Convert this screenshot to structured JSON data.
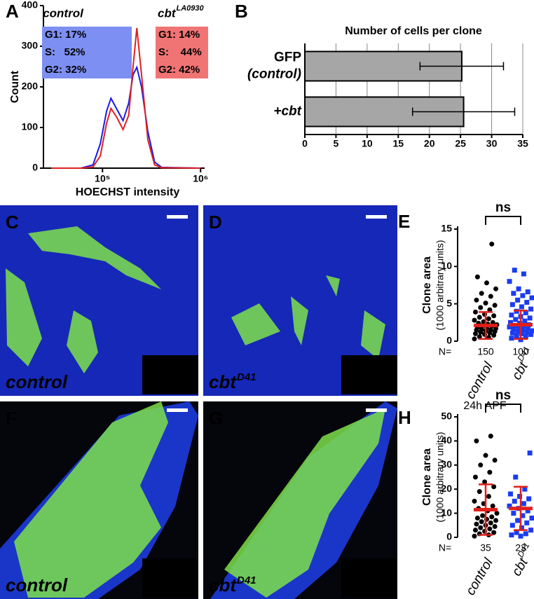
{
  "chart_data": [
    {
      "type": "line",
      "panel": "A",
      "ylabel": "Count",
      "xlabel": "HOECHST intensity",
      "log_x": true,
      "xlim": [
        25000,
        1100000
      ],
      "xticks": [
        {
          "value": 100000,
          "label": "10⁵"
        },
        {
          "value": 1000000,
          "label": "10⁶"
        }
      ],
      "ylim": [
        0,
        400
      ],
      "yticks": [
        0,
        100,
        200,
        300,
        400
      ],
      "x": [
        30000,
        60000,
        80000,
        95000,
        110000,
        122000,
        140000,
        162000,
        185000,
        205000,
        224000,
        250000,
        290000,
        340000,
        400000,
        1000000
      ],
      "series": [
        {
          "name": "control",
          "color": "#1a1ae6",
          "box_color": "#7d8ff2",
          "stats": [
            "G1: 17%",
            "S:   52%",
            "G2: 32%"
          ],
          "values": [
            0,
            0,
            8,
            60,
            140,
            172,
            145,
            117,
            160,
            230,
            248,
            200,
            90,
            15,
            2,
            0
          ]
        },
        {
          "name": "cbt",
          "name_sup": "LA0930",
          "color": "#e02020",
          "box_color": "#f07474",
          "stats": [
            "G1: 14%",
            "S:    44%",
            "G2: 42%"
          ],
          "values": [
            0,
            0,
            3,
            30,
            110,
            147,
            125,
            95,
            130,
            250,
            345,
            230,
            70,
            8,
            1,
            0
          ]
        }
      ]
    },
    {
      "type": "bar",
      "panel": "B",
      "title": "Number of cells per clone",
      "orientation": "horizontal",
      "categories": [
        [
          "GFP",
          "(control)"
        ],
        [
          "+cbt"
        ]
      ],
      "values": [
        25.2,
        25.5
      ],
      "errors": [
        6.7,
        8.2
      ],
      "color": "#a6a6a6",
      "xlim": [
        0,
        35
      ],
      "xticks": [
        0,
        5,
        10,
        15,
        20,
        25,
        30,
        35
      ],
      "grid": true
    },
    {
      "type": "dot",
      "panel": "E",
      "ylabel": [
        "Clone area",
        "(1000 arbitrary units)"
      ],
      "n_label": "N=",
      "significance": "ns",
      "mean_color": "#e0201b",
      "ylim": [
        0,
        15
      ],
      "yticks": [
        0,
        5,
        10,
        15
      ],
      "series": [
        {
          "name": "control",
          "color": "#000000",
          "marker": "circle",
          "mean": 2.1,
          "sd": 1.8,
          "n": 150,
          "values": [
            0.3,
            0.5,
            0.6,
            0.8,
            0.9,
            1.0,
            1.1,
            1.2,
            1.3,
            1.4,
            1.5,
            1.5,
            1.6,
            1.7,
            1.8,
            1.9,
            2.0,
            2.1,
            2.2,
            2.3,
            2.4,
            2.5,
            2.6,
            2.8,
            3.0,
            3.2,
            3.4,
            3.6,
            3.9,
            4.2,
            4.5,
            4.8,
            5.1,
            5.5,
            6.0,
            6.4,
            7.0,
            7.8,
            8.6,
            13.0
          ]
        },
        {
          "name": "cbt",
          "name_sup": "D41",
          "color": "#1a3cf0",
          "marker": "square",
          "mean": 2.2,
          "sd": 1.9,
          "n": 100,
          "values": [
            0.2,
            0.4,
            0.6,
            0.7,
            0.9,
            1.0,
            1.1,
            1.2,
            1.3,
            1.4,
            1.5,
            1.6,
            1.7,
            1.8,
            1.9,
            2.0,
            2.1,
            2.2,
            2.4,
            2.5,
            2.7,
            2.9,
            3.1,
            3.3,
            3.5,
            3.8,
            4.0,
            4.3,
            4.6,
            4.9,
            5.2,
            5.5,
            5.8,
            6.1,
            6.4,
            6.6,
            7.0,
            8.0,
            9.0,
            9.5
          ]
        }
      ]
    },
    {
      "type": "dot",
      "panel": "H",
      "title": "24h APF",
      "ylabel": [
        "Clone area",
        "(1000 arbitrary units)"
      ],
      "n_label": "N=",
      "significance": "ns",
      "mean_color": "#e0201b",
      "ylim": [
        0,
        50
      ],
      "yticks": [
        0,
        10,
        20,
        30,
        40,
        50
      ],
      "series": [
        {
          "name": "control",
          "color": "#000000",
          "marker": "circle",
          "mean": 11.5,
          "sd": 10.5,
          "n": 35,
          "values": [
            0.5,
            1,
            1.5,
            2,
            2.5,
            3,
            3.5,
            4,
            4.5,
            5,
            5.5,
            6,
            6.5,
            7,
            7.5,
            8,
            8.5,
            9,
            10,
            11,
            12,
            13,
            14,
            15,
            17,
            19,
            21,
            23,
            25,
            27,
            30,
            32,
            34,
            40,
            42
          ]
        },
        {
          "name": "cbt",
          "name_sup": "D41",
          "color": "#1a3cf0",
          "marker": "square",
          "mean": 12,
          "sd": 9,
          "n": 23,
          "values": [
            0.5,
            1,
            1.5,
            2,
            3,
            4,
            5,
            6,
            7,
            8,
            9,
            10,
            11,
            12,
            13,
            14,
            15,
            16,
            17,
            18,
            20,
            25,
            35
          ]
        }
      ]
    }
  ],
  "images": [
    {
      "panel": "C",
      "label": "control",
      "channels": [
        "GFP",
        "DNA"
      ]
    },
    {
      "panel": "D",
      "label": "cbt",
      "label_sup": "D41",
      "channels": [
        "GFP",
        "DNA"
      ]
    },
    {
      "panel": "F",
      "label": "control",
      "channels": [
        "GFP",
        "DNA"
      ]
    },
    {
      "panel": "G",
      "label": "cbt",
      "label_sup": "D41",
      "channels": [
        "GFP",
        "DNA"
      ]
    }
  ]
}
